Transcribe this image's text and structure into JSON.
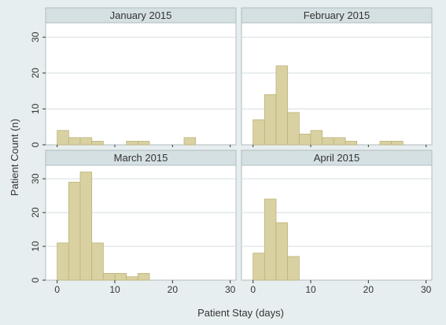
{
  "chart_data": {
    "type": "bar",
    "xlabel": "Patient Stay (days)",
    "ylabel": "Patient Count (n)",
    "bin_width": 2,
    "xlim": [
      -2,
      31
    ],
    "ylim": [
      0,
      34
    ],
    "x_ticks": [
      0,
      10,
      20,
      30
    ],
    "y_ticks": [
      0,
      10,
      20,
      30
    ],
    "grid": true,
    "colors": {
      "bar_fill": "#d9d1a1",
      "bar_stroke": "#bdb37a",
      "plot_bg": "#ffffff",
      "outer_bg": "#e7eeef",
      "header_bg": "#d5e0e3",
      "grid": "#d4dde0",
      "axis_text": "#333333",
      "border": "#b0bcbf"
    },
    "panels": [
      {
        "title": "January 2015",
        "bins": [
          {
            "x": 0,
            "count": 4
          },
          {
            "x": 2,
            "count": 2
          },
          {
            "x": 4,
            "count": 2
          },
          {
            "x": 6,
            "count": 1
          },
          {
            "x": 12,
            "count": 1
          },
          {
            "x": 14,
            "count": 1
          },
          {
            "x": 22,
            "count": 2
          }
        ]
      },
      {
        "title": "February 2015",
        "bins": [
          {
            "x": 0,
            "count": 7
          },
          {
            "x": 2,
            "count": 14
          },
          {
            "x": 4,
            "count": 22
          },
          {
            "x": 6,
            "count": 9
          },
          {
            "x": 8,
            "count": 3
          },
          {
            "x": 10,
            "count": 4
          },
          {
            "x": 12,
            "count": 2
          },
          {
            "x": 14,
            "count": 2
          },
          {
            "x": 16,
            "count": 1
          },
          {
            "x": 22,
            "count": 1
          },
          {
            "x": 24,
            "count": 1
          }
        ]
      },
      {
        "title": "March 2015",
        "bins": [
          {
            "x": 0,
            "count": 11
          },
          {
            "x": 2,
            "count": 29
          },
          {
            "x": 4,
            "count": 32
          },
          {
            "x": 6,
            "count": 11
          },
          {
            "x": 8,
            "count": 2
          },
          {
            "x": 10,
            "count": 2
          },
          {
            "x": 12,
            "count": 1
          },
          {
            "x": 14,
            "count": 2
          }
        ]
      },
      {
        "title": "April 2015",
        "bins": [
          {
            "x": 0,
            "count": 8
          },
          {
            "x": 2,
            "count": 24
          },
          {
            "x": 4,
            "count": 17
          },
          {
            "x": 6,
            "count": 7
          }
        ]
      }
    ]
  }
}
